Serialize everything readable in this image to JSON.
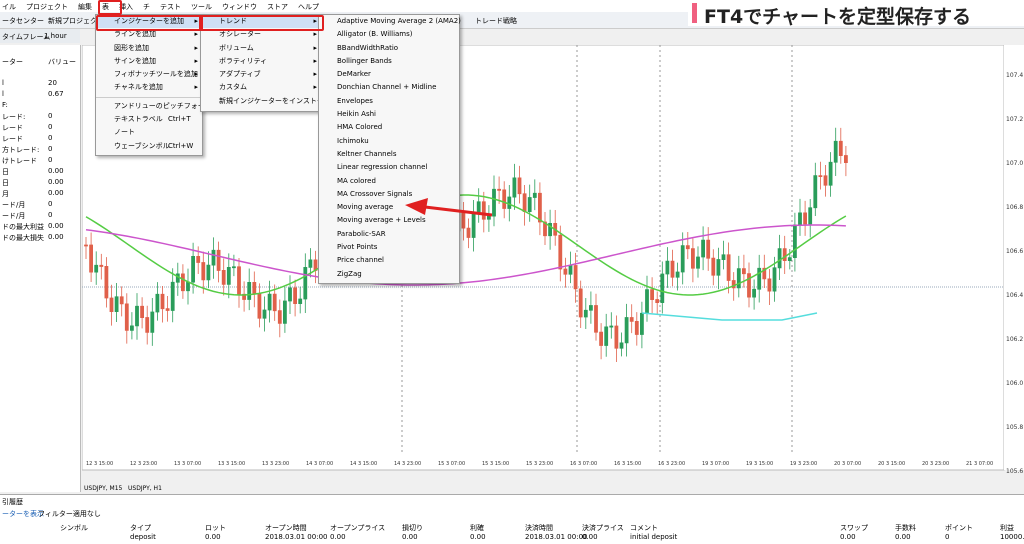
{
  "menubar": [
    "イル",
    "プロジェクト",
    "編集",
    "表",
    "挿入",
    "チ",
    "テスト",
    "ツール",
    "ウィンドウ",
    "ストア",
    "ヘルプ"
  ],
  "toolbar": [
    "ータセンター",
    "新規プロジェクト",
    "トレード戦略"
  ],
  "timeframe": {
    "label": "タイムフレーム",
    "value": "1 hour"
  },
  "banner": "FT4でチャートを定型保存する",
  "insert_menu": [
    {
      "label": "インジケーターを追加"
    },
    {
      "label": "ラインを追加"
    },
    {
      "label": "図形を追加"
    },
    {
      "label": "サインを追加"
    },
    {
      "label": "フィボナッチツールを追加"
    },
    {
      "label": "チャネルを追加"
    },
    {
      "label": "アンドリューのピッチフォーク"
    },
    {
      "label": "テキストラベル",
      "shortcut": "Ctrl+T"
    },
    {
      "label": "ノート"
    },
    {
      "label": "ウェーブシンボル",
      "shortcut": "Ctrl+W"
    }
  ],
  "indicator_menu": [
    "トレンド",
    "オシレーター",
    "ボリューム",
    "ボラティリティ",
    "アダプティブ",
    "カスタム",
    "新規インジケーターをインストール"
  ],
  "trend_menu": [
    "Adaptive Moving Average 2 (AMA2)",
    "Alligator (B. Williams)",
    "BBandWidthRatio",
    "Bollinger Bands",
    "DeMarker",
    "Donchian Channel + Midline",
    "Envelopes",
    "Heikin Ashi",
    "HMA Colored",
    "Ichimoku",
    "Keltner Channels",
    "Linear regression channel",
    "MA colored",
    "MA Crossover Signals",
    "Moving average",
    "Moving average + Levels",
    "Parabolic-SAR",
    "Pivot Points",
    "Price channel",
    "ZigZag"
  ],
  "left_panel": {
    "header": [
      "ーター",
      "バリュー"
    ],
    "rows": [
      [
        "l",
        "20"
      ],
      [
        "l",
        "0.67"
      ],
      [
        "F:",
        ""
      ],
      [
        "レード:",
        "0"
      ],
      [
        "レード",
        "0"
      ],
      [
        "レード",
        "0"
      ],
      [
        "方トレード:",
        "0"
      ],
      [
        "けトレード",
        "0"
      ],
      [
        "日",
        "0.00"
      ],
      [
        "日",
        "0.00"
      ],
      [
        "月",
        "0.00"
      ],
      [
        "ード/月",
        "0"
      ],
      [
        "ード/月",
        "0"
      ],
      [
        "ドの最大利益",
        "0.00"
      ],
      [
        "ドの最大損失",
        "0.00"
      ]
    ]
  },
  "price_axis": [
    "107.4",
    "107.2",
    "107.0",
    "106.8",
    "106.6",
    "106.4",
    "106.2",
    "106.0",
    "105.8",
    "105.6"
  ],
  "date_axis": [
    "12 3 15:00",
    "12 3 23:00",
    "13 3 07:00",
    "13 3 15:00",
    "13 3 23:00",
    "14 3 07:00",
    "14 3 15:00",
    "14 3 23:00",
    "15 3 07:00",
    "15 3 15:00",
    "15 3 23:00",
    "16 3 07:00",
    "16 3 15:00",
    "16 3 23:00",
    "19 3 07:00",
    "19 3 15:00",
    "19 3 23:00",
    "20 3 07:00",
    "20 3 15:00",
    "20 3 23:00",
    "21 3 07:00"
  ],
  "chart_tabs": [
    "USDJPY, M15",
    "USDJPY, H1"
  ],
  "bottom_panel": {
    "title": "引履歴",
    "tabs": [
      "ーターを表示",
      "フィルター適用なし"
    ],
    "headers": [
      "シンボル",
      "タイプ",
      "ロット",
      "オープン時間",
      "オープンプライス",
      "損切り",
      "利確",
      "決済時間",
      "決済プライス",
      "コメント",
      "スワップ",
      "手数料",
      "ポイント",
      "利益"
    ],
    "row": [
      "",
      "deposit",
      "0.00",
      "2018.03.01 00:00",
      "0.00",
      "0.00",
      "0.00",
      "2018.03.01 00:00",
      "0.00",
      "initial deposit",
      "0.00",
      "0.00",
      "0",
      "10000.00"
    ]
  }
}
